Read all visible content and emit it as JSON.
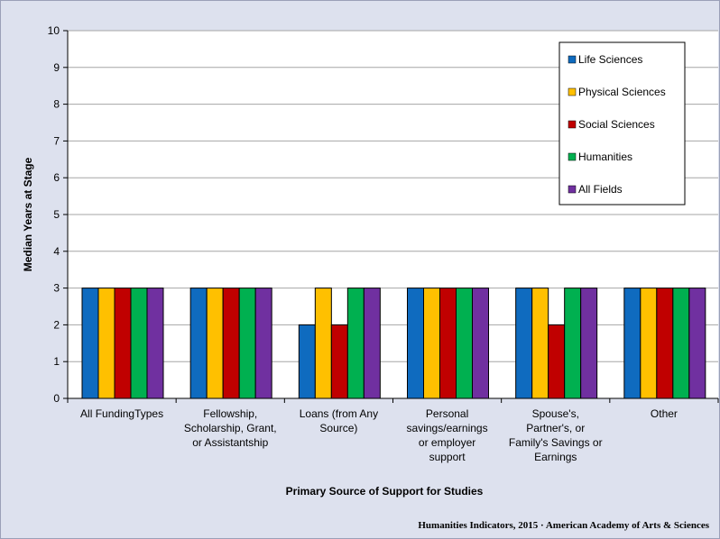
{
  "chart_data": {
    "type": "bar",
    "categories": [
      [
        "All FundingTypes"
      ],
      [
        "Fellowship,",
        "Scholarship, Grant,",
        "or Assistantship"
      ],
      [
        "Loans (from Any",
        "Source)"
      ],
      [
        "Personal",
        "savings/earnings",
        "or employer",
        "support"
      ],
      [
        "Spouse's,",
        "Partner's, or",
        "Family's Savings or",
        "Earnings"
      ],
      [
        "Other"
      ]
    ],
    "series": [
      {
        "name": "Life Sciences",
        "color": "#0f6bbf",
        "values": [
          3,
          3,
          2,
          3,
          3,
          3
        ]
      },
      {
        "name": "Physical Sciences",
        "color": "#ffc000",
        "values": [
          3,
          3,
          3,
          3,
          3,
          3
        ]
      },
      {
        "name": "Social Sciences",
        "color": "#c00000",
        "values": [
          3,
          3,
          2,
          3,
          2,
          3
        ]
      },
      {
        "name": "Humanities",
        "color": "#00b050",
        "values": [
          3,
          3,
          3,
          3,
          3,
          3
        ]
      },
      {
        "name": "All Fields",
        "color": "#7030a0",
        "values": [
          3,
          3,
          3,
          3,
          3,
          3
        ]
      }
    ],
    "xlabel": "Primary Source of Support for Studies",
    "ylabel": "Median Years at Stage",
    "ylim": [
      0,
      10
    ],
    "yticks": [
      0,
      1,
      2,
      3,
      4,
      5,
      6,
      7,
      8,
      9,
      10
    ],
    "grid": true,
    "legend": "top-right"
  },
  "credit": "Humanities Indicators, 2015 · American Academy of Arts & Sciences"
}
